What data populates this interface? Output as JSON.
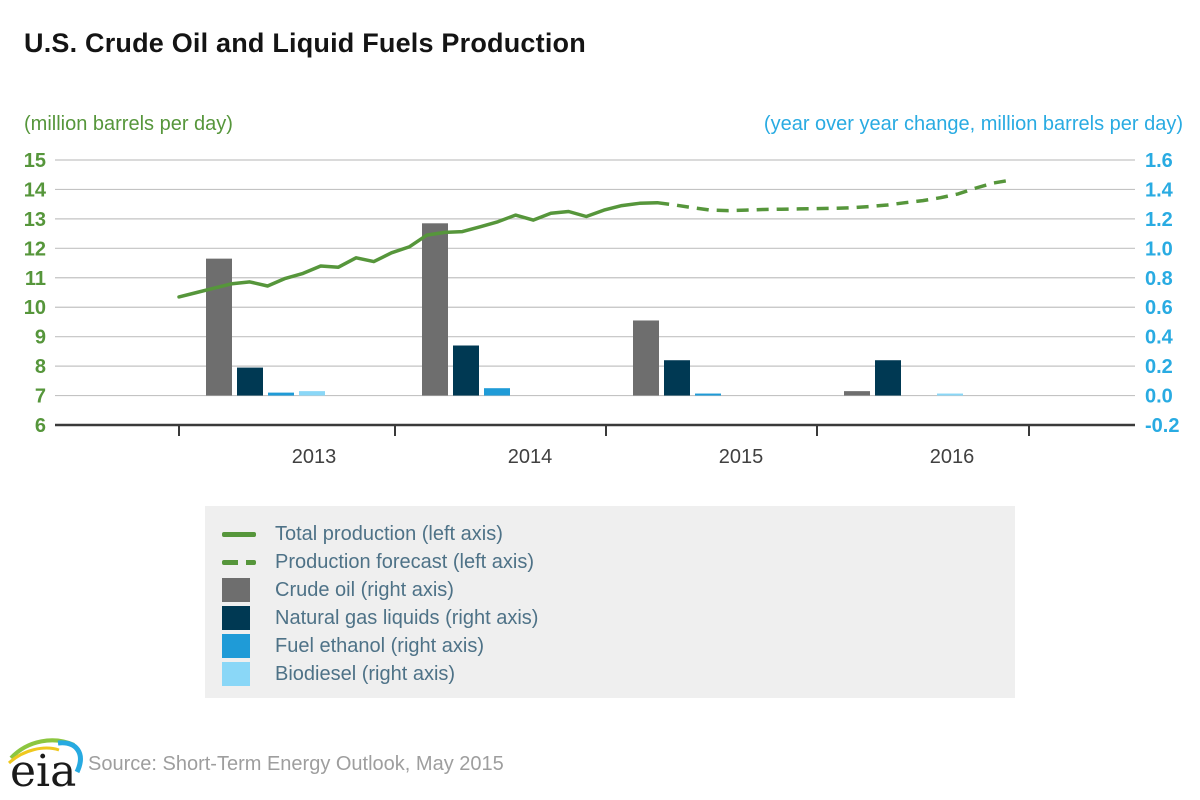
{
  "header": {
    "title": "U.S. Crude Oil and Liquid Fuels Production"
  },
  "axes": {
    "left_unit_label": "(million barrels per day)",
    "right_unit_label": "(year over year change, million barrels per day)"
  },
  "footer": {
    "logo_text": "eia",
    "source": "Source: Short-Term Energy Outlook, May 2015"
  },
  "colors": {
    "line_green": "#56963B",
    "axis_right_blue": "#29ABE2",
    "crude_gray": "#6E6E6E",
    "ngl_navy": "#003953",
    "ethanol_blue": "#1F9BD7",
    "biodiesel_sky": "#8AD7F7",
    "legend_bg": "#EFEFEF",
    "legend_text": "#4E7287",
    "grid": "#C3C3C3",
    "axis_dark": "#3A3A3A",
    "year_label": "#404040",
    "title_text": "#141414",
    "source_text": "#9E9E9E"
  },
  "chart_data": {
    "type": "combo-line-and-grouped-bar-dual-axis",
    "title": "U.S. Crude Oil and Liquid Fuels Production",
    "grid": true,
    "legend_position": "bottom-left-box",
    "left_axis": {
      "label": "(million barrels per day)",
      "min": 6,
      "max": 15,
      "ticks": [
        15,
        14,
        13,
        12,
        11,
        10,
        9,
        8,
        7,
        6
      ]
    },
    "right_axis": {
      "label": "(year over year change, million barrels per day)",
      "min": -0.2,
      "max": 1.6,
      "ticks": [
        "1.6",
        "1.4",
        "1.2",
        "1.0",
        "0.8",
        "0.6",
        "0.4",
        "0.2",
        "0.0",
        "-0.2"
      ]
    },
    "x_axis": {
      "year_labels": [
        "2013",
        "2014",
        "2015",
        "2016"
      ]
    },
    "line_series": {
      "name": "Total production",
      "forecast_name": "Production forecast",
      "axis": "left",
      "start_month": "2013-01",
      "end_month": "2016-12",
      "forecast_start_month": "2015-04",
      "forecast_start_index": 27,
      "monthly_values": [
        10.35,
        10.5,
        10.65,
        10.8,
        10.86,
        10.72,
        10.98,
        11.15,
        11.4,
        11.36,
        11.68,
        11.55,
        11.85,
        12.05,
        12.45,
        12.54,
        12.57,
        12.73,
        12.9,
        13.13,
        12.96,
        13.19,
        13.25,
        13.08,
        13.3,
        13.45,
        13.53,
        13.55,
        13.47,
        13.38,
        13.3,
        13.28,
        13.3,
        13.32,
        13.33,
        13.34,
        13.35,
        13.36,
        13.38,
        13.42,
        13.47,
        13.55,
        13.62,
        13.72,
        13.85,
        14.05,
        14.22,
        14.32
      ]
    },
    "bar_series": {
      "axis": "right",
      "categories": [
        "2013",
        "2014",
        "2015",
        "2016"
      ],
      "series": [
        {
          "name": "Crude oil (right axis)",
          "color_key": "crude_gray",
          "values": [
            0.93,
            1.17,
            0.51,
            0.03
          ]
        },
        {
          "name": "Natural gas liquids (right axis)",
          "color_key": "ngl_navy",
          "values": [
            0.19,
            0.34,
            0.24,
            0.24
          ]
        },
        {
          "name": "Fuel ethanol (right axis)",
          "color_key": "ethanol_blue",
          "values": [
            0.02,
            0.05,
            0.01,
            0
          ]
        },
        {
          "name": "Biodiesel (right axis)",
          "color_key": "biodiesel_sky",
          "values": [
            0.03,
            0,
            0,
            0.01
          ]
        }
      ]
    },
    "legend": [
      {
        "swatch": "line-solid",
        "color_key": "line_green",
        "label": "Total production (left axis)"
      },
      {
        "swatch": "line-dashed",
        "color_key": "line_green",
        "label": "Production forecast (left axis)"
      },
      {
        "swatch": "rect",
        "color_key": "crude_gray",
        "label": "Crude oil (right axis)"
      },
      {
        "swatch": "rect",
        "color_key": "ngl_navy",
        "label": "Natural gas liquids (right axis)"
      },
      {
        "swatch": "rect",
        "color_key": "ethanol_blue",
        "label": "Fuel ethanol (right axis)"
      },
      {
        "swatch": "rect",
        "color_key": "biodiesel_sky",
        "label": "Biodiesel (right axis)"
      }
    ]
  }
}
